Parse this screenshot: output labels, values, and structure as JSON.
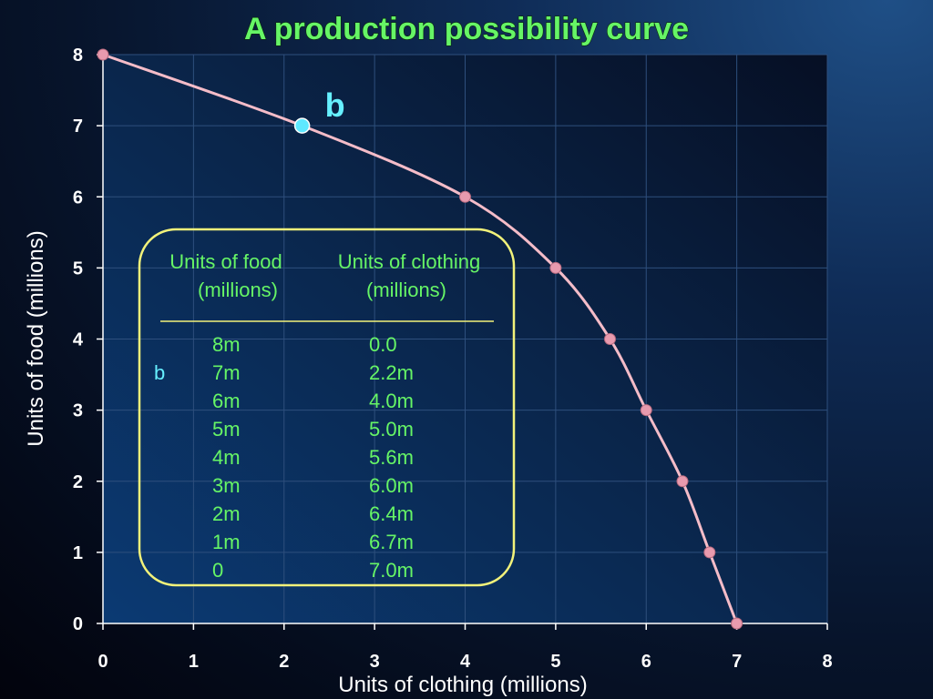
{
  "chart_data": {
    "type": "line",
    "title": "A production possibility curve",
    "xlabel": "Units of clothing (millions)",
    "ylabel": "Units of food (millions)",
    "xlim": [
      0,
      8
    ],
    "ylim": [
      0,
      8
    ],
    "xticks": [
      "0",
      "1",
      "2",
      "3",
      "4",
      "5",
      "6",
      "7",
      "8"
    ],
    "yticks": [
      "0",
      "1",
      "2",
      "3",
      "4",
      "5",
      "6",
      "7",
      "8"
    ],
    "grid": true,
    "series": [
      {
        "x": [
          0.0,
          2.2,
          4.0,
          5.0,
          5.6,
          6.0,
          6.4,
          6.7,
          7.0
        ],
        "y": [
          8,
          7,
          6,
          5,
          4,
          3,
          2,
          1,
          0
        ]
      }
    ],
    "highlight": {
      "label": "b",
      "x": 2.2,
      "y": 7
    },
    "colors": {
      "curve": "#f4bcc8",
      "point": "#e89aae",
      "highlight": "#5ee8ff",
      "table_border": "#f2f27a"
    }
  },
  "table": {
    "headers": [
      {
        "line1": "Units of food",
        "line2": "(millions)"
      },
      {
        "line1": "Units of clothing",
        "line2": "(millions)"
      }
    ],
    "rows": [
      {
        "marker": "",
        "food": "8m",
        "clothing": "0.0"
      },
      {
        "marker": "b",
        "food": "7m",
        "clothing": "2.2m"
      },
      {
        "marker": "",
        "food": "6m",
        "clothing": "4.0m"
      },
      {
        "marker": "",
        "food": "5m",
        "clothing": "5.0m"
      },
      {
        "marker": "",
        "food": "4m",
        "clothing": "5.6m"
      },
      {
        "marker": "",
        "food": "3m",
        "clothing": "6.0m"
      },
      {
        "marker": "",
        "food": "2m",
        "clothing": "6.4m"
      },
      {
        "marker": "",
        "food": "1m",
        "clothing": "6.7m"
      },
      {
        "marker": "",
        "food": "0",
        "clothing": "7.0m"
      }
    ]
  }
}
